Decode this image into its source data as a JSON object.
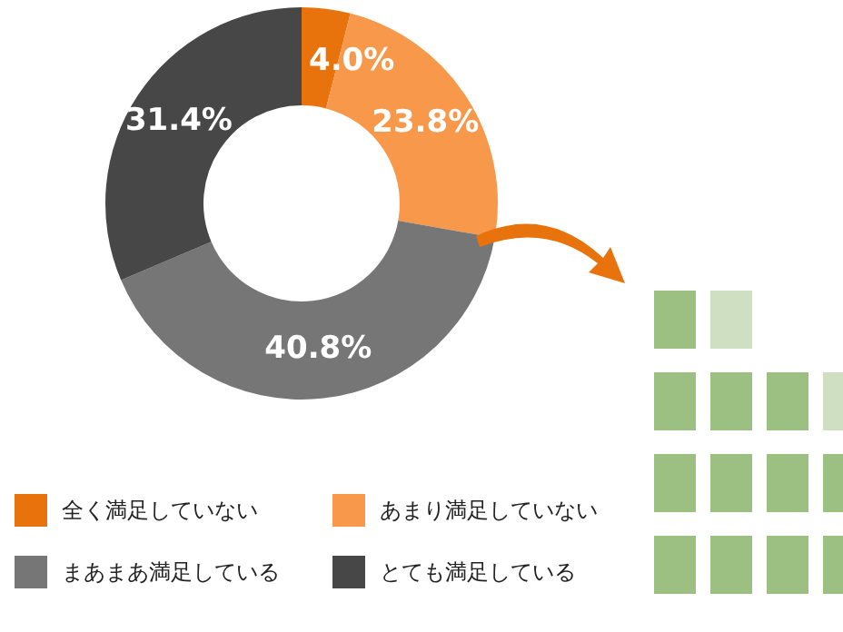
{
  "chart_data": {
    "type": "donut",
    "categories": [
      "全く満足していない",
      "あまり満足していない",
      "まあまあ満足している",
      "とても満足している"
    ],
    "values": [
      4.0,
      23.8,
      40.8,
      31.4
    ],
    "colors": [
      "#e8730c",
      "#f7984a",
      "#767676",
      "#474747"
    ],
    "value_labels": [
      "4.0%",
      "23.8%",
      "40.8%",
      "31.4%"
    ],
    "legend": "bottom"
  }
}
